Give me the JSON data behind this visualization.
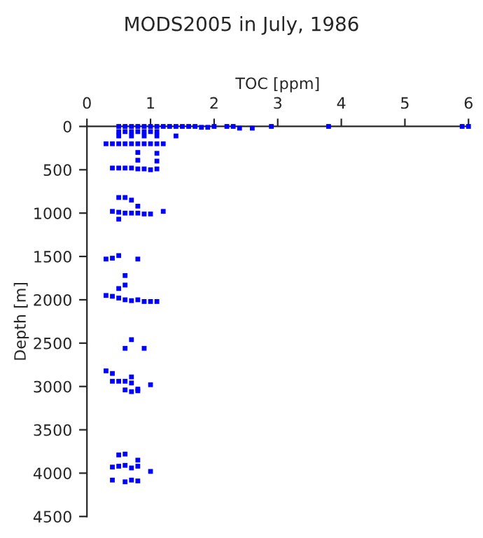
{
  "chart_data": {
    "type": "scatter",
    "title": "MODS2005 in July, 1986",
    "xlabel": "TOC [ppm]",
    "ylabel": "Depth [m]",
    "xlim": [
      0,
      6
    ],
    "xticks": [
      0,
      1,
      2,
      3,
      4,
      5,
      6
    ],
    "ylim": [
      4500,
      0
    ],
    "yticks": [
      0,
      500,
      1000,
      1500,
      2000,
      2500,
      3000,
      3500,
      4000,
      4500
    ],
    "grid": false,
    "marker": "square",
    "series": [
      {
        "color": "#0000ff",
        "x": [
          0.5,
          0.6,
          0.7,
          0.8,
          0.9,
          1.0,
          1.1,
          1.2,
          1.3,
          1.4,
          1.5,
          1.6,
          1.7,
          1.8,
          1.9,
          2.0,
          2.2,
          2.3,
          2.4,
          2.6,
          2.9,
          3.8,
          5.9,
          6.0,
          0.5,
          0.6,
          0.7,
          0.8,
          0.9,
          1.0,
          1.1,
          0.5,
          0.7,
          0.9,
          1.1,
          1.4,
          0.3,
          0.4,
          0.5,
          0.6,
          0.7,
          0.8,
          0.9,
          1.0,
          1.1,
          1.2,
          0.8,
          1.1,
          0.8,
          1.1,
          0.4,
          0.5,
          0.6,
          0.7,
          0.8,
          0.9,
          1.0,
          1.1,
          0.5,
          0.6,
          0.7,
          0.8,
          0.4,
          0.5,
          0.6,
          0.7,
          0.8,
          0.9,
          1.0,
          1.2,
          0.5,
          0.3,
          0.4,
          0.5,
          0.8,
          0.6,
          0.6,
          0.5,
          0.3,
          0.4,
          0.5,
          0.6,
          0.7,
          0.8,
          0.9,
          1.0,
          1.1,
          0.7,
          0.6,
          0.9,
          0.3,
          0.4,
          0.4,
          0.5,
          0.6,
          0.7,
          0.7,
          1.0,
          0.6,
          0.7,
          0.8,
          0.8,
          0.5,
          0.6,
          0.8,
          0.4,
          0.5,
          0.6,
          0.7,
          0.8,
          1.0,
          0.4,
          0.6,
          0.7,
          0.8
        ],
        "values": [
          0,
          0,
          0,
          0,
          0,
          0,
          0,
          0,
          0,
          0,
          0,
          0,
          0,
          10,
          10,
          0,
          0,
          0,
          20,
          20,
          0,
          0,
          0,
          0,
          60,
          60,
          60,
          60,
          60,
          60,
          60,
          110,
          110,
          110,
          110,
          110,
          200,
          200,
          200,
          200,
          200,
          200,
          200,
          200,
          200,
          200,
          300,
          310,
          390,
          400,
          480,
          480,
          480,
          480,
          490,
          490,
          500,
          490,
          820,
          820,
          850,
          920,
          980,
          990,
          1000,
          1000,
          1000,
          1010,
          1010,
          980,
          1070,
          1530,
          1520,
          1490,
          1530,
          1720,
          1830,
          1870,
          1950,
          1960,
          1980,
          2000,
          2010,
          2000,
          2020,
          2020,
          2020,
          2460,
          2560,
          2560,
          2820,
          2850,
          2940,
          2940,
          2940,
          2890,
          2960,
          2980,
          3040,
          3060,
          3030,
          3050,
          3790,
          3780,
          3850,
          3930,
          3920,
          3910,
          3940,
          3920,
          3980,
          4080,
          4100,
          4080,
          4090
        ]
      }
    ]
  }
}
